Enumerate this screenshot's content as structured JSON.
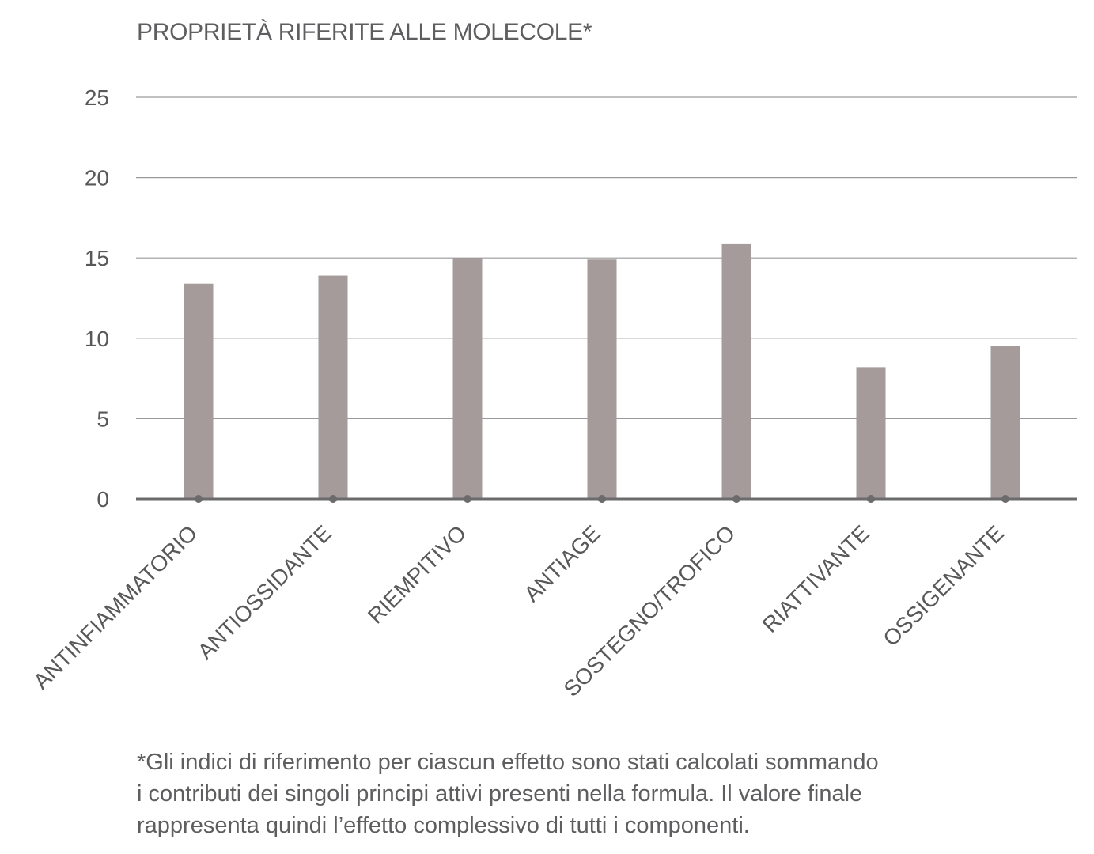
{
  "chart_data": {
    "type": "bar",
    "title": "PROPRIETÀ RIFERITE ALLE MOLECOLE*",
    "categories": [
      "ANTINFIAMMATORIO",
      "ANTIOSSIDANTE",
      "RIEMPITIVO",
      "ANTIAGE",
      "SOSTEGNO/TROFICO",
      "RIATTIVANTE",
      "OSSIGENANTE"
    ],
    "values": [
      13.4,
      13.9,
      15.0,
      14.9,
      15.9,
      8.2,
      9.5
    ],
    "ylim": [
      0,
      25
    ],
    "yticks": [
      "0",
      "5",
      "10",
      "15",
      "20",
      "25"
    ],
    "grid": true,
    "bar_color": "#a69b9b",
    "axis_color": "#6b6b6d",
    "grid_color": "#9a9a9c"
  },
  "footnote": {
    "lines": [
      "*Gli indici di riferimento per ciascun effetto sono stati calcolati sommando",
      "i contributi dei singoli principi attivi presenti nella formula. Il valore finale",
      "rappresenta quindi l’effetto complessivo di tutti i componenti."
    ]
  }
}
